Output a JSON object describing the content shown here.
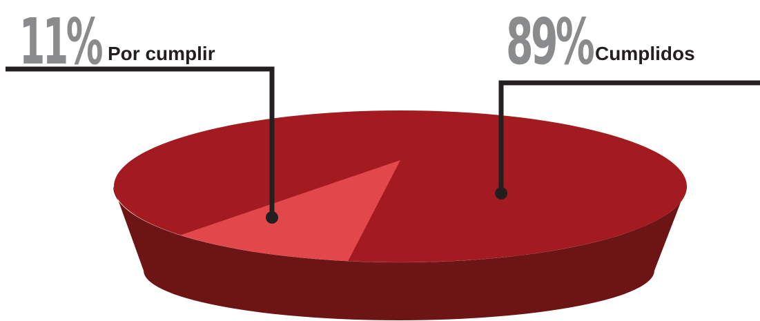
{
  "chart_data": {
    "type": "pie",
    "style": "3d-tilted",
    "slices": [
      {
        "label": "Por cumplir",
        "percent": 11,
        "value_text": "11%",
        "color": "#e2474c"
      },
      {
        "label": "Cumplidos",
        "percent": 89,
        "value_text": "89%",
        "color": "#a31b20"
      }
    ],
    "side_color": "#6d1415",
    "leader_color": "#231f20",
    "percent_text_color": "#8a8b8d"
  }
}
